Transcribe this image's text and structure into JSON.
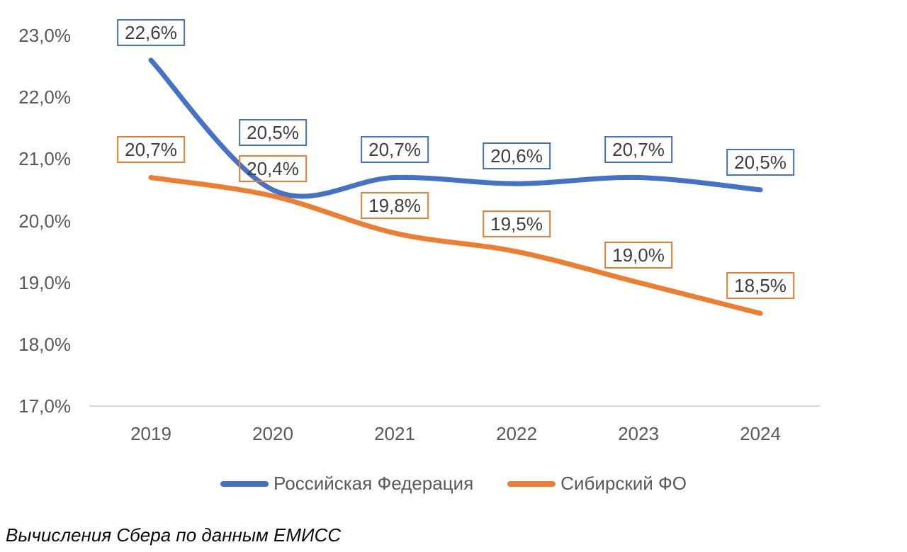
{
  "chart_data": {
    "type": "line",
    "title": "",
    "xlabel": "",
    "ylabel": "",
    "x_categories": [
      "2019",
      "2020",
      "2021",
      "2022",
      "2023",
      "2024"
    ],
    "series": [
      {
        "name": "Российская Федерация",
        "color": "#4472C4",
        "values": [
          22.6,
          20.5,
          20.7,
          20.6,
          20.7,
          20.5
        ],
        "point_labels": [
          "22,6%",
          "20,5%",
          "20,7%",
          "20,6%",
          "20,7%",
          "20,5%"
        ]
      },
      {
        "name": "Сибирский ФО",
        "color": "#ED7D31",
        "values": [
          20.7,
          20.4,
          19.8,
          19.5,
          19.0,
          18.5
        ],
        "point_labels": [
          "20,7%",
          "20,4%",
          "19,8%",
          "19,5%",
          "19,0%",
          "18,5%"
        ]
      }
    ],
    "y_axis": {
      "min": 17,
      "max": 23,
      "step": 1,
      "tick_labels": [
        "17,0%",
        "18,0%",
        "19,0%",
        "20,0%",
        "21,0%",
        "22,0%",
        "23,0%"
      ]
    },
    "style": {
      "smooth": true,
      "grid": false,
      "line_width": 7,
      "legend_position": "bottom",
      "axis_line_color": "#D9D9D9",
      "axis_text_color": "#595959",
      "data_label_text_color": "#3F3F3F",
      "background": "#FFFFFF"
    },
    "layout_hints": {
      "label_extra_dy": [
        [
          0,
          -42,
          0,
          0,
          0,
          0
        ],
        [
          0,
          0,
          0,
          0,
          0,
          0
        ]
      ]
    }
  },
  "caption": "Вычисления Сбера по данным ЕМИСС"
}
